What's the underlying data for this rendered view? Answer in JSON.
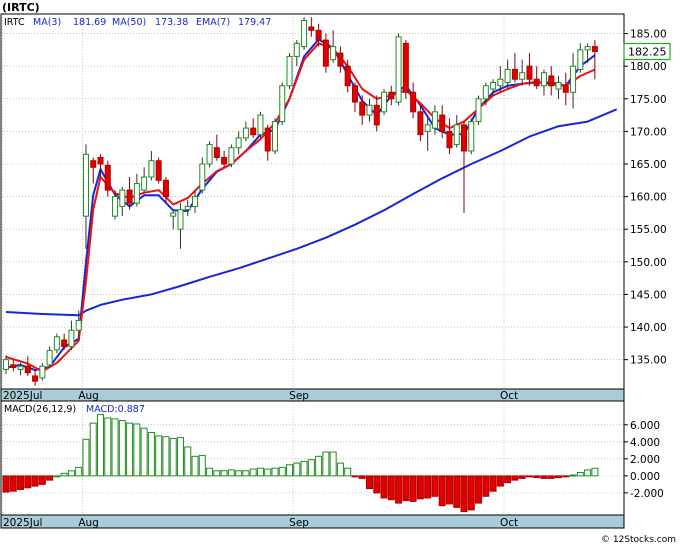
{
  "title": "(IRTC)",
  "watermark": "© 12Stocks.com",
  "main_legend": {
    "ticker": "IRTC",
    "ma3": "MA(3)",
    "ma3_value": "181.69",
    "ma50": "MA(50)",
    "ma50_value": "173.38",
    "ema7": "EMA(7)",
    "ema7_value": "179.47"
  },
  "price_tag": "182.25",
  "macd_legend": {
    "params": "MACD(26,12,9)",
    "value": "MACD:0.887"
  },
  "x_axis_labels": [
    "2025Jul",
    "Aug",
    "Sep",
    "Oct"
  ],
  "colors": {
    "up": "#228b22",
    "down": "#e00000",
    "ma50": "#1428d8",
    "ema7": "#ee1111",
    "axis_strip": "#a8ccd8",
    "grid": "#a0a0a0"
  },
  "chart_data": [
    {
      "type": "candlestick",
      "name": "price",
      "ylim": [
        130.5,
        188
      ],
      "yticks": [
        135,
        140,
        145,
        150,
        155,
        160,
        165,
        170,
        175,
        180,
        185
      ],
      "ytick_labels": [
        "135.00",
        "140.00",
        "145.00",
        "150.00",
        "155.00",
        "160.00",
        "165.00",
        "170.00",
        "175.00",
        "180.00",
        "185.00"
      ],
      "grid": true,
      "month_starts": [
        {
          "label": "2025Jul",
          "index": 0
        },
        {
          "label": "Aug",
          "index": 11
        },
        {
          "label": "Sep",
          "index": 40
        },
        {
          "label": "Oct",
          "index": 69
        }
      ],
      "ohlc": [
        [
          133.5,
          135.7,
          132.8,
          135.0
        ],
        [
          134.2,
          135.0,
          133.2,
          133.8
        ],
        [
          133.5,
          134.5,
          132.6,
          134.0
        ],
        [
          134.0,
          135.5,
          132.5,
          133.0
        ],
        [
          132.5,
          133.5,
          131.0,
          131.7
        ],
        [
          132.2,
          134.5,
          131.8,
          134.0
        ],
        [
          134.2,
          137.0,
          133.8,
          136.4
        ],
        [
          136.5,
          139.0,
          136.0,
          138.5
        ],
        [
          138.0,
          139.0,
          136.5,
          137.0
        ],
        [
          137.0,
          141.0,
          136.5,
          139.5
        ],
        [
          139.5,
          142.5,
          138.0,
          141.0
        ],
        [
          157.0,
          168.0,
          152.0,
          166.5
        ],
        [
          165.5,
          166.0,
          162.0,
          164.5
        ],
        [
          166.0,
          166.5,
          163.0,
          165.0
        ],
        [
          164.8,
          165.5,
          160.0,
          161.0
        ],
        [
          157.0,
          161.0,
          156.5,
          160.0
        ],
        [
          158.5,
          161.5,
          157.0,
          161.0
        ],
        [
          161.0,
          163.0,
          158.0,
          159.0
        ],
        [
          159.0,
          163.5,
          158.5,
          162.0
        ],
        [
          161.0,
          164.5,
          160.5,
          163.0
        ],
        [
          163.0,
          167.0,
          162.5,
          165.5
        ],
        [
          165.5,
          166.0,
          162.0,
          162.5
        ],
        [
          162.5,
          163.0,
          159.0,
          160.0
        ],
        [
          157.0,
          158.0,
          155.0,
          157.5
        ],
        [
          155.0,
          159.0,
          152.0,
          158.0
        ],
        [
          158.0,
          159.5,
          157.0,
          158.5
        ],
        [
          158.5,
          161.0,
          157.5,
          160.0
        ],
        [
          161.0,
          166.0,
          160.5,
          165.0
        ],
        [
          165.0,
          168.5,
          164.5,
          168.0
        ],
        [
          167.5,
          169.5,
          165.5,
          166.0
        ],
        [
          166.0,
          167.0,
          164.5,
          165.0
        ],
        [
          165.0,
          168.0,
          164.5,
          167.5
        ],
        [
          167.5,
          170.0,
          166.5,
          169.0
        ],
        [
          169.0,
          171.5,
          168.5,
          170.5
        ],
        [
          170.5,
          172.0,
          169.0,
          169.5
        ],
        [
          169.5,
          173.0,
          169.0,
          172.5
        ],
        [
          170.5,
          171.0,
          165.5,
          167.0
        ],
        [
          167.0,
          172.0,
          166.5,
          171.5
        ],
        [
          171.5,
          177.5,
          171.0,
          177.0
        ],
        [
          177.0,
          182.0,
          176.5,
          181.5
        ],
        [
          181.5,
          184.0,
          180.0,
          183.5
        ],
        [
          183.0,
          187.5,
          182.5,
          187.0
        ],
        [
          186.0,
          187.5,
          184.5,
          185.5
        ],
        [
          185.5,
          186.5,
          183.0,
          184.0
        ],
        [
          184.0,
          185.0,
          179.0,
          180.0
        ],
        [
          181.0,
          185.5,
          180.5,
          183.0
        ],
        [
          182.0,
          183.0,
          179.0,
          180.0
        ],
        [
          180.0,
          181.0,
          176.0,
          177.0
        ],
        [
          177.0,
          177.5,
          173.0,
          174.5
        ],
        [
          174.5,
          175.5,
          171.0,
          172.5
        ],
        [
          172.5,
          175.0,
          171.5,
          174.0
        ],
        [
          174.0,
          175.5,
          170.0,
          171.0
        ],
        [
          173.0,
          176.5,
          172.5,
          176.0
        ],
        [
          176.0,
          177.0,
          174.0,
          175.0
        ],
        [
          174.5,
          185.0,
          174.0,
          184.5
        ],
        [
          183.5,
          184.0,
          175.0,
          176.0
        ],
        [
          176.0,
          177.5,
          172.0,
          173.0
        ],
        [
          173.0,
          174.0,
          168.5,
          169.5
        ],
        [
          170.0,
          172.0,
          167.0,
          171.0
        ],
        [
          170.5,
          174.0,
          169.5,
          173.0
        ],
        [
          172.5,
          174.0,
          169.0,
          170.0
        ],
        [
          170.0,
          172.0,
          166.5,
          167.5
        ],
        [
          168.0,
          172.5,
          167.5,
          171.0
        ],
        [
          171.0,
          171.5,
          157.5,
          167.0
        ],
        [
          167.0,
          172.0,
          166.5,
          171.5
        ],
        [
          171.5,
          175.5,
          171.0,
          175.0
        ],
        [
          175.0,
          177.5,
          174.0,
          177.0
        ],
        [
          176.5,
          178.0,
          175.5,
          177.5
        ],
        [
          177.0,
          180.0,
          176.0,
          178.0
        ],
        [
          177.5,
          181.0,
          176.5,
          179.5
        ],
        [
          179.5,
          182.0,
          177.5,
          178.0
        ],
        [
          178.0,
          181.0,
          177.0,
          179.0
        ],
        [
          180.0,
          182.0,
          177.0,
          178.0
        ],
        [
          178.0,
          180.0,
          176.5,
          177.0
        ],
        [
          177.0,
          179.5,
          175.5,
          179.0
        ],
        [
          178.5,
          180.0,
          175.5,
          177.0
        ],
        [
          176.5,
          178.5,
          175.0,
          177.5
        ],
        [
          177.0,
          179.0,
          174.0,
          176.0
        ],
        [
          176.0,
          182.0,
          173.5,
          180.0
        ],
        [
          179.5,
          183.5,
          179.0,
          182.5
        ],
        [
          182.5,
          183.5,
          180.5,
          183.0
        ],
        [
          183.0,
          184.0,
          178.0,
          182.25
        ]
      ],
      "ma50": [
        [
          0,
          142.3
        ],
        [
          5,
          142.0
        ],
        [
          10,
          141.8
        ],
        [
          11,
          142.5
        ],
        [
          13,
          143.4
        ],
        [
          16,
          144.2
        ],
        [
          20,
          145.0
        ],
        [
          24,
          146.3
        ],
        [
          28,
          147.7
        ],
        [
          32,
          149.0
        ],
        [
          36,
          150.5
        ],
        [
          40,
          152.0
        ],
        [
          44,
          153.7
        ],
        [
          48,
          155.7
        ],
        [
          52,
          157.9
        ],
        [
          56,
          160.4
        ],
        [
          60,
          162.8
        ],
        [
          64,
          165.0
        ],
        [
          68,
          167.0
        ],
        [
          72,
          169.2
        ],
        [
          76,
          170.8
        ],
        [
          80,
          171.5
        ],
        [
          84,
          173.38
        ]
      ],
      "ma3": [
        [
          0,
          133.8
        ],
        [
          2,
          134.2
        ],
        [
          4,
          133.4
        ],
        [
          6,
          133.9
        ],
        [
          8,
          136.9
        ],
        [
          10,
          138.2
        ],
        [
          11,
          150.0
        ],
        [
          12,
          160.2
        ],
        [
          13,
          164.2
        ],
        [
          15,
          160.3
        ],
        [
          17,
          158.5
        ],
        [
          19,
          160.2
        ],
        [
          21,
          160.2
        ],
        [
          23,
          157.9
        ],
        [
          25,
          157.8
        ],
        [
          27,
          161.2
        ],
        [
          29,
          163.8
        ],
        [
          31,
          165.0
        ],
        [
          33,
          167.0
        ],
        [
          35,
          169.5
        ],
        [
          37,
          170.3
        ],
        [
          39,
          175.0
        ],
        [
          41,
          181.5
        ],
        [
          43,
          184.1
        ],
        [
          45,
          182.8
        ],
        [
          47,
          178.7
        ],
        [
          49,
          174.7
        ],
        [
          51,
          172.5
        ],
        [
          53,
          175.5
        ],
        [
          55,
          177.0
        ],
        [
          57,
          174.0
        ],
        [
          59,
          170.5
        ],
        [
          61,
          169.5
        ],
        [
          63,
          169.6
        ],
        [
          65,
          173.5
        ],
        [
          67,
          176.0
        ],
        [
          69,
          177.0
        ],
        [
          71,
          177.3
        ],
        [
          73,
          177.5
        ],
        [
          75,
          177.5
        ],
        [
          77,
          177.0
        ],
        [
          79,
          180.0
        ],
        [
          81,
          181.69
        ]
      ],
      "ema7": [
        [
          0,
          135.4
        ],
        [
          3,
          134.4
        ],
        [
          5,
          133.2
        ],
        [
          7,
          134.5
        ],
        [
          10,
          137.9
        ],
        [
          11,
          147.0
        ],
        [
          12,
          158.0
        ],
        [
          13,
          163.0
        ],
        [
          15,
          160.5
        ],
        [
          17,
          159.8
        ],
        [
          19,
          160.6
        ],
        [
          21,
          161.0
        ],
        [
          23,
          158.8
        ],
        [
          25,
          159.8
        ],
        [
          27,
          162.0
        ],
        [
          29,
          163.9
        ],
        [
          31,
          165.0
        ],
        [
          33,
          167.0
        ],
        [
          35,
          168.8
        ],
        [
          37,
          171.3
        ],
        [
          39,
          175.0
        ],
        [
          41,
          181.0
        ],
        [
          43,
          183.5
        ],
        [
          45,
          182.7
        ],
        [
          47,
          180.0
        ],
        [
          49,
          176.5
        ],
        [
          51,
          175.0
        ],
        [
          53,
          175.5
        ],
        [
          55,
          176.3
        ],
        [
          57,
          174.3
        ],
        [
          59,
          172.0
        ],
        [
          61,
          170.5
        ],
        [
          63,
          171.5
        ],
        [
          65,
          173.5
        ],
        [
          67,
          175.5
        ],
        [
          69,
          176.5
        ],
        [
          71,
          177.3
        ],
        [
          73,
          177.6
        ],
        [
          75,
          177.2
        ],
        [
          77,
          177.0
        ],
        [
          79,
          178.5
        ],
        [
          81,
          179.47
        ]
      ]
    },
    {
      "type": "bar",
      "name": "MACD(26,12,9)",
      "ylim": [
        -4.6,
        8.8
      ],
      "yticks": [
        -2,
        0,
        2,
        4,
        6
      ],
      "ytick_labels": [
        "-2.000",
        "0.000",
        "2.000",
        "4.000",
        "6.000"
      ],
      "grid": true,
      "values": [
        -1.9,
        -1.8,
        -1.6,
        -1.4,
        -1.2,
        -1.0,
        -0.5,
        0.0,
        0.3,
        0.6,
        1.0,
        4.3,
        6.2,
        7.2,
        6.8,
        6.7,
        6.5,
        6.2,
        6.1,
        5.6,
        5.1,
        4.7,
        4.6,
        4.4,
        4.5,
        3.4,
        2.3,
        2.4,
        0.9,
        0.6,
        0.6,
        0.7,
        0.6,
        0.6,
        0.8,
        0.9,
        0.8,
        0.9,
        1.0,
        1.3,
        1.5,
        1.7,
        1.9,
        2.3,
        2.8,
        2.8,
        1.5,
        0.9,
        -0.1,
        -0.3,
        -1.5,
        -2.0,
        -2.6,
        -2.8,
        -3.2,
        -2.9,
        -3.0,
        -2.7,
        -2.6,
        -2.4,
        -3.5,
        -3.3,
        -3.7,
        -4.2,
        -4.0,
        -3.2,
        -2.4,
        -1.8,
        -1.2,
        -0.8,
        -0.5,
        -0.3,
        -0.1,
        -0.2,
        -0.3,
        -0.3,
        -0.2,
        -0.1,
        0.1,
        0.4,
        0.7,
        0.887
      ]
    }
  ]
}
